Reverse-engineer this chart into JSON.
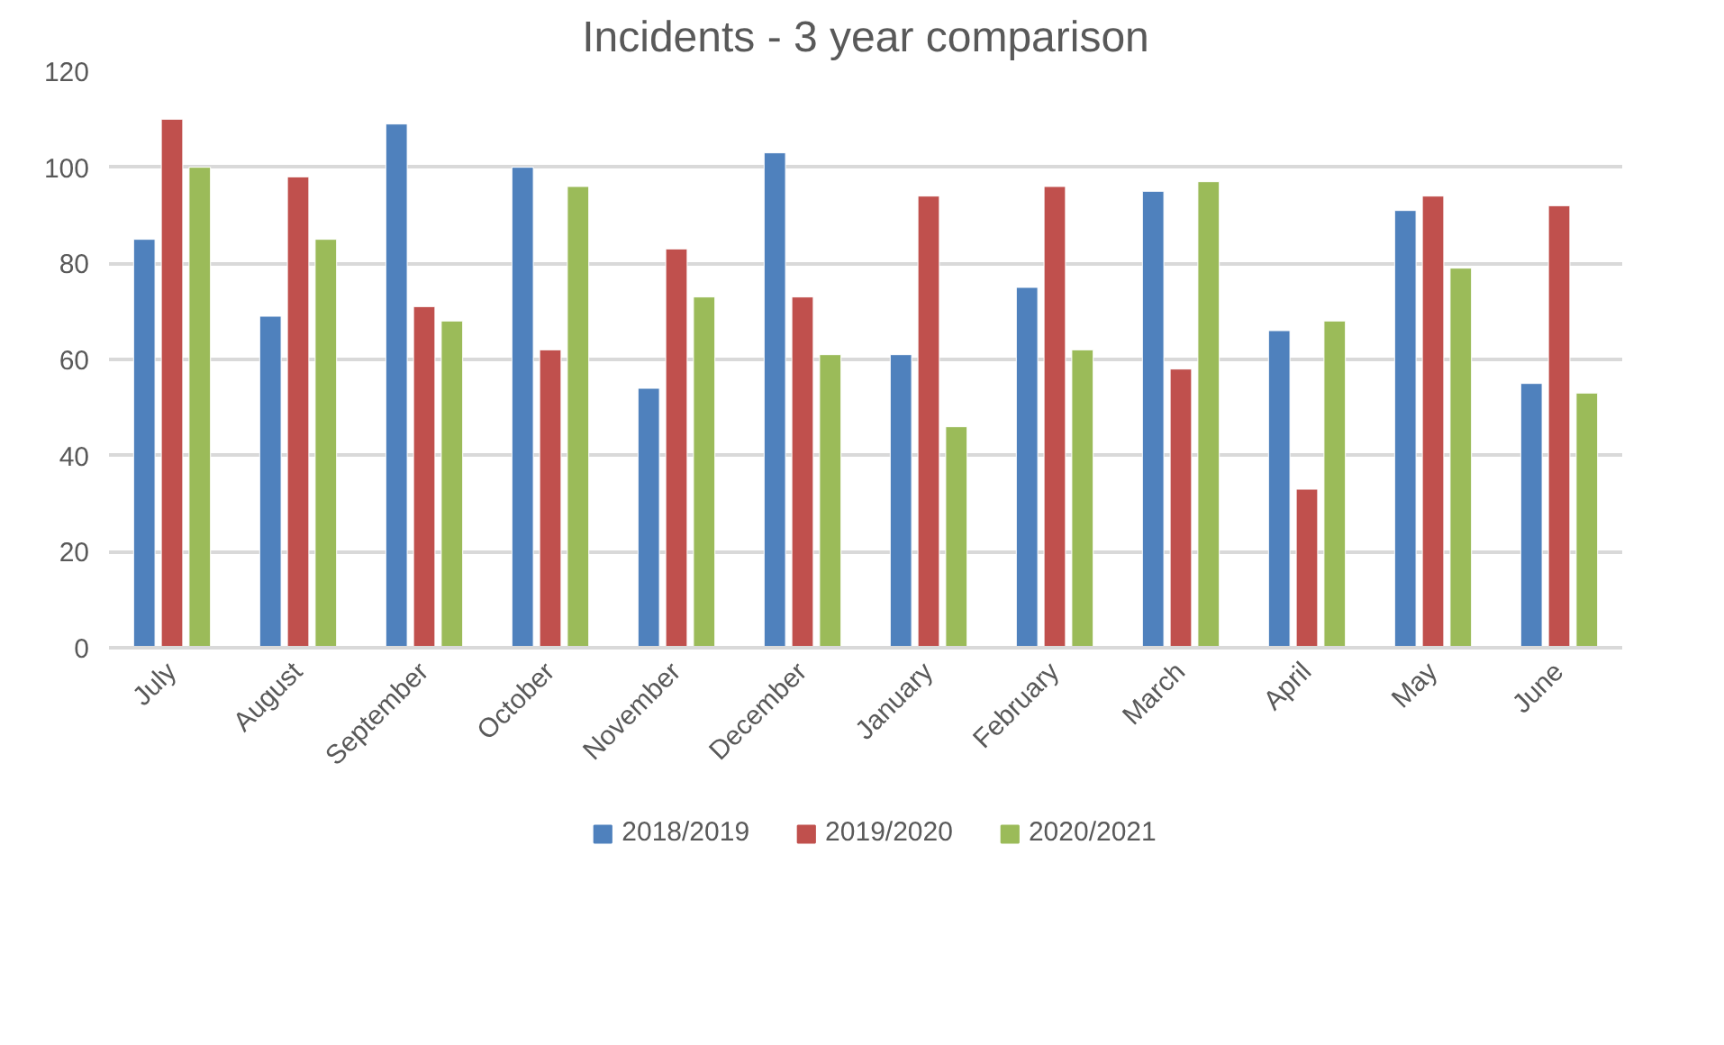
{
  "chart_data": {
    "type": "bar",
    "title": "Incidents - 3 year comparison",
    "categories": [
      "July",
      "August",
      "September",
      "October",
      "November",
      "December",
      "January",
      "February",
      "March",
      "April",
      "May",
      "June"
    ],
    "series": [
      {
        "name": "2018/2019",
        "color": "#4f81bd",
        "values": [
          85,
          69,
          109,
          100,
          54,
          103,
          61,
          75,
          95,
          66,
          91,
          55
        ]
      },
      {
        "name": "2019/2020",
        "color": "#c0504d",
        "values": [
          110,
          98,
          71,
          62,
          83,
          73,
          94,
          96,
          58,
          33,
          94,
          92
        ]
      },
      {
        "name": "2020/2021",
        "color": "#9bbb59",
        "values": [
          100,
          85,
          68,
          96,
          73,
          61,
          46,
          62,
          97,
          68,
          79,
          53
        ]
      }
    ],
    "ylim": [
      0,
      120
    ],
    "yticks": [
      0,
      20,
      40,
      60,
      80,
      100,
      120
    ],
    "grid": "y",
    "legend": "bottom"
  }
}
